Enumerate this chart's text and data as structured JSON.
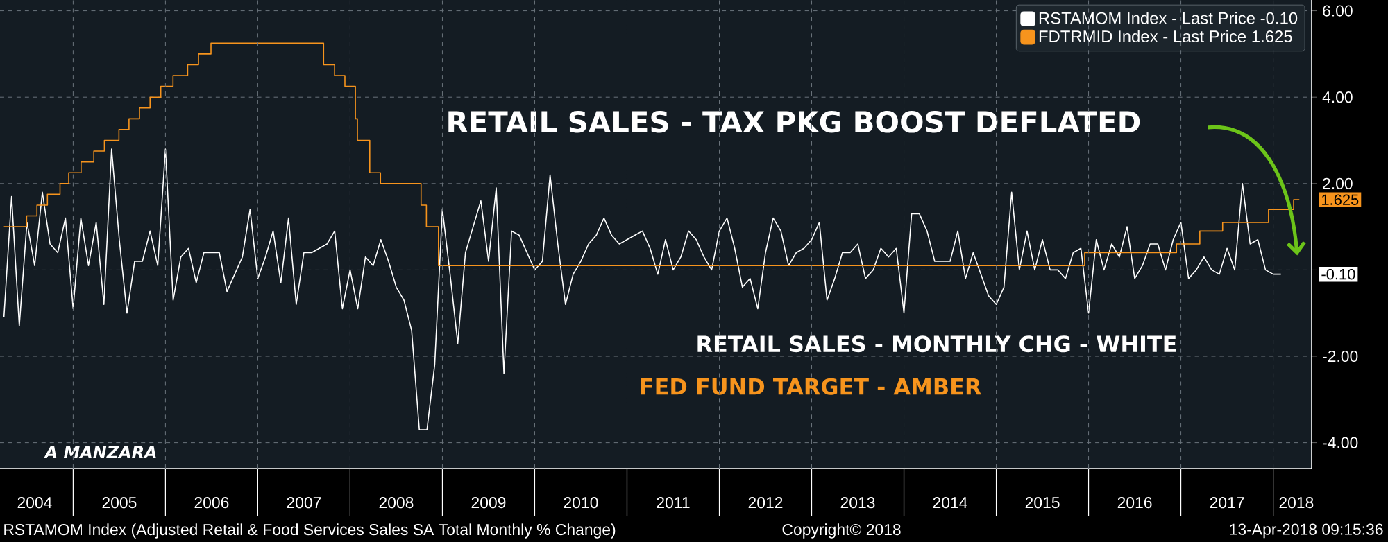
{
  "chart_data": {
    "type": "line",
    "title": "RETAIL SALES - TAX PKG BOOST DEFLATED",
    "annotations": [
      "RETAIL SALES - MONTHLY CHG - WHITE",
      "FED FUND TARGET - AMBER",
      "A MANZARA",
      "RSTAMOM Index (Adjusted Retail & Food Services Sales SA Total Monthly % Change)",
      "Copyright© 2018",
      "13-Apr-2018 09:15:36",
      "1.625",
      "-0.10"
    ],
    "xlim": [
      "2004-03-16",
      "2018-06-01"
    ],
    "xticks": [
      {
        "value": "2004-08",
        "label": "2004"
      },
      {
        "value": "2005",
        "label": null
      },
      {
        "value": "2005-07",
        "label": "2005"
      },
      {
        "value": "2006",
        "label": null
      },
      {
        "value": "2006-07",
        "label": "2006"
      },
      {
        "value": "2007",
        "label": null
      },
      {
        "value": "2007-07",
        "label": "2007"
      },
      {
        "value": "2008",
        "label": null
      },
      {
        "value": "2008-07",
        "label": "2008"
      },
      {
        "value": "2009",
        "label": null
      },
      {
        "value": "2009-07",
        "label": "2009"
      },
      {
        "value": "2010",
        "label": null
      },
      {
        "value": "2010-07",
        "label": "2010"
      },
      {
        "value": "2011",
        "label": null
      },
      {
        "value": "2011-07",
        "label": "2011"
      },
      {
        "value": "2012",
        "label": null
      },
      {
        "value": "2012-07",
        "label": "2012"
      },
      {
        "value": "2013",
        "label": null
      },
      {
        "value": "2013-07",
        "label": "2013"
      },
      {
        "value": "2014",
        "label": null
      },
      {
        "value": "2014-07",
        "label": "2014"
      },
      {
        "value": "2015",
        "label": null
      },
      {
        "value": "2015-07",
        "label": "2015"
      },
      {
        "value": "2016",
        "label": null
      },
      {
        "value": "2016-07",
        "label": "2016"
      },
      {
        "value": "2017",
        "label": null
      },
      {
        "value": "2017-07",
        "label": "2017"
      },
      {
        "value": "2018",
        "label": null
      },
      {
        "value": "2018-04",
        "label": "2018"
      }
    ],
    "ylim": [
      -4.6,
      6.25
    ],
    "yticks": [
      {
        "value": -4,
        "label": "-4.00"
      },
      {
        "value": -2,
        "label": "-2.00"
      },
      {
        "value": 0,
        "label": null
      },
      {
        "value": 2,
        "label": "2.00"
      },
      {
        "value": 4,
        "label": "4.00"
      },
      {
        "value": 6,
        "label": "6.00"
      }
    ],
    "grid": true,
    "legend": "top right",
    "series": [
      {
        "name": "RSTAMOM Index - Last Price -0.10",
        "color": "#ffffff",
        "x": [
          "2004-04",
          "2004-05",
          "2004-06",
          "2004-07",
          "2004-08",
          "2004-09",
          "2004-10",
          "2004-11",
          "2004-12",
          "2005-01",
          "2005-02",
          "2005-03",
          "2005-04",
          "2005-05",
          "2005-06",
          "2005-07",
          "2005-08",
          "2005-09",
          "2005-10",
          "2005-11",
          "2005-12",
          "2006-01",
          "2006-02",
          "2006-03",
          "2006-04",
          "2006-05",
          "2006-06",
          "2006-07",
          "2006-08",
          "2006-09",
          "2006-10",
          "2006-11",
          "2006-12",
          "2007-01",
          "2007-02",
          "2007-03",
          "2007-04",
          "2007-05",
          "2007-06",
          "2007-07",
          "2007-08",
          "2007-09",
          "2007-10",
          "2007-11",
          "2007-12",
          "2008-01",
          "2008-02",
          "2008-03",
          "2008-04",
          "2008-05",
          "2008-06",
          "2008-07",
          "2008-08",
          "2008-09",
          "2008-10",
          "2008-11",
          "2008-12",
          "2009-01",
          "2009-02",
          "2009-03",
          "2009-04",
          "2009-05",
          "2009-06",
          "2009-07",
          "2009-08",
          "2009-09",
          "2009-10",
          "2009-11",
          "2009-12",
          "2010-01",
          "2010-02",
          "2010-03",
          "2010-04",
          "2010-05",
          "2010-06",
          "2010-07",
          "2010-08",
          "2010-09",
          "2010-10",
          "2010-11",
          "2010-12",
          "2011-01",
          "2011-02",
          "2011-03",
          "2011-04",
          "2011-05",
          "2011-06",
          "2011-07",
          "2011-08",
          "2011-09",
          "2011-10",
          "2011-11",
          "2011-12",
          "2012-01",
          "2012-02",
          "2012-03",
          "2012-04",
          "2012-05",
          "2012-06",
          "2012-07",
          "2012-08",
          "2012-09",
          "2012-10",
          "2012-11",
          "2012-12",
          "2013-01",
          "2013-02",
          "2013-03",
          "2013-04",
          "2013-05",
          "2013-06",
          "2013-07",
          "2013-08",
          "2013-09",
          "2013-10",
          "2013-11",
          "2013-12",
          "2014-01",
          "2014-02",
          "2014-03",
          "2014-04",
          "2014-05",
          "2014-06",
          "2014-07",
          "2014-08",
          "2014-09",
          "2014-10",
          "2014-11",
          "2014-12",
          "2015-01",
          "2015-02",
          "2015-03",
          "2015-04",
          "2015-05",
          "2015-06",
          "2015-07",
          "2015-08",
          "2015-09",
          "2015-10",
          "2015-11",
          "2015-12",
          "2016-01",
          "2016-02",
          "2016-03",
          "2016-04",
          "2016-05",
          "2016-06",
          "2016-07",
          "2016-08",
          "2016-09",
          "2016-10",
          "2016-11",
          "2016-12",
          "2017-01",
          "2017-02",
          "2017-03",
          "2017-04",
          "2017-05",
          "2017-06",
          "2017-07",
          "2017-08",
          "2017-09",
          "2017-10",
          "2017-11",
          "2017-12",
          "2018-01",
          "2018-02"
        ],
        "values": [
          -1.1,
          1.7,
          -1.3,
          1.1,
          0.1,
          1.8,
          0.6,
          0.4,
          1.2,
          -0.9,
          1.2,
          0.1,
          1.1,
          -0.8,
          2.8,
          0.7,
          -1.0,
          0.2,
          0.2,
          0.9,
          0.1,
          2.8,
          -0.7,
          0.3,
          0.5,
          -0.3,
          0.4,
          0.4,
          0.4,
          -0.5,
          -0.1,
          0.3,
          1.4,
          -0.2,
          0.3,
          0.9,
          -0.3,
          1.2,
          -0.8,
          0.4,
          0.4,
          0.5,
          0.6,
          0.9,
          -0.9,
          0.0,
          -0.9,
          0.3,
          0.1,
          0.7,
          0.2,
          -0.4,
          -0.7,
          -1.4,
          -3.7,
          -3.7,
          -2.2,
          1.4,
          -0.1,
          -1.7,
          0.4,
          1.0,
          1.6,
          0.2,
          1.9,
          -2.4,
          0.9,
          0.8,
          0.4,
          0.0,
          0.2,
          2.2,
          0.6,
          -0.8,
          -0.1,
          0.2,
          0.6,
          0.8,
          1.2,
          0.8,
          0.6,
          0.7,
          0.8,
          0.9,
          0.5,
          -0.1,
          0.7,
          0.0,
          0.3,
          0.9,
          0.7,
          0.3,
          0.0,
          0.9,
          1.2,
          0.5,
          -0.4,
          -0.2,
          -0.9,
          0.4,
          1.2,
          0.9,
          0.1,
          0.4,
          0.5,
          0.7,
          1.1,
          -0.7,
          -0.2,
          0.4,
          0.4,
          0.6,
          -0.2,
          0.0,
          0.5,
          0.3,
          0.5,
          -1.0,
          1.3,
          1.3,
          0.9,
          0.2,
          0.2,
          0.2,
          0.9,
          -0.2,
          0.4,
          -0.1,
          -0.6,
          -0.8,
          -0.4,
          1.8,
          0.0,
          0.9,
          0.0,
          0.7,
          0.0,
          0.0,
          -0.2,
          0.4,
          0.5,
          -1.0,
          0.7,
          0.0,
          0.6,
          0.3,
          1.0,
          -0.2,
          0.1,
          0.6,
          0.6,
          0.0,
          0.7,
          1.1,
          -0.2,
          0.0,
          0.3,
          0.0,
          -0.1,
          0.5,
          0.0,
          2.0,
          0.6,
          0.7,
          0.0,
          -0.1,
          -0.1
        ]
      },
      {
        "name": "FDTRMID Index - Last Price 1.625",
        "color": "#f7941d",
        "type": "step",
        "x": [
          "2004-04-01",
          "2004-06-30",
          "2004-08-10",
          "2004-09-21",
          "2004-11-10",
          "2004-12-14",
          "2005-02-02",
          "2005-03-22",
          "2005-05-03",
          "2005-06-30",
          "2005-08-09",
          "2005-09-20",
          "2005-11-01",
          "2005-12-13",
          "2006-01-31",
          "2006-03-28",
          "2006-05-10",
          "2006-06-29",
          "2007-09-18",
          "2007-10-31",
          "2007-12-11",
          "2008-01-22",
          "2008-01-30",
          "2008-03-18",
          "2008-04-30",
          "2008-10-08",
          "2008-10-29",
          "2008-12-16",
          "2015-12-16",
          "2016-12-14",
          "2017-03-15",
          "2017-06-14",
          "2017-12-13",
          "2018-03-21",
          "2018-04-13"
        ],
        "values": [
          1.0,
          1.25,
          1.5,
          1.75,
          2.0,
          2.25,
          2.5,
          2.75,
          3.0,
          3.25,
          3.5,
          3.75,
          4.0,
          4.25,
          4.5,
          4.75,
          5.0,
          5.25,
          4.75,
          4.5,
          4.25,
          3.5,
          3.0,
          2.25,
          2.0,
          1.5,
          1.0,
          0.1,
          0.4,
          0.6,
          0.9,
          1.1,
          1.4,
          1.625,
          1.625
        ]
      }
    ]
  }
}
